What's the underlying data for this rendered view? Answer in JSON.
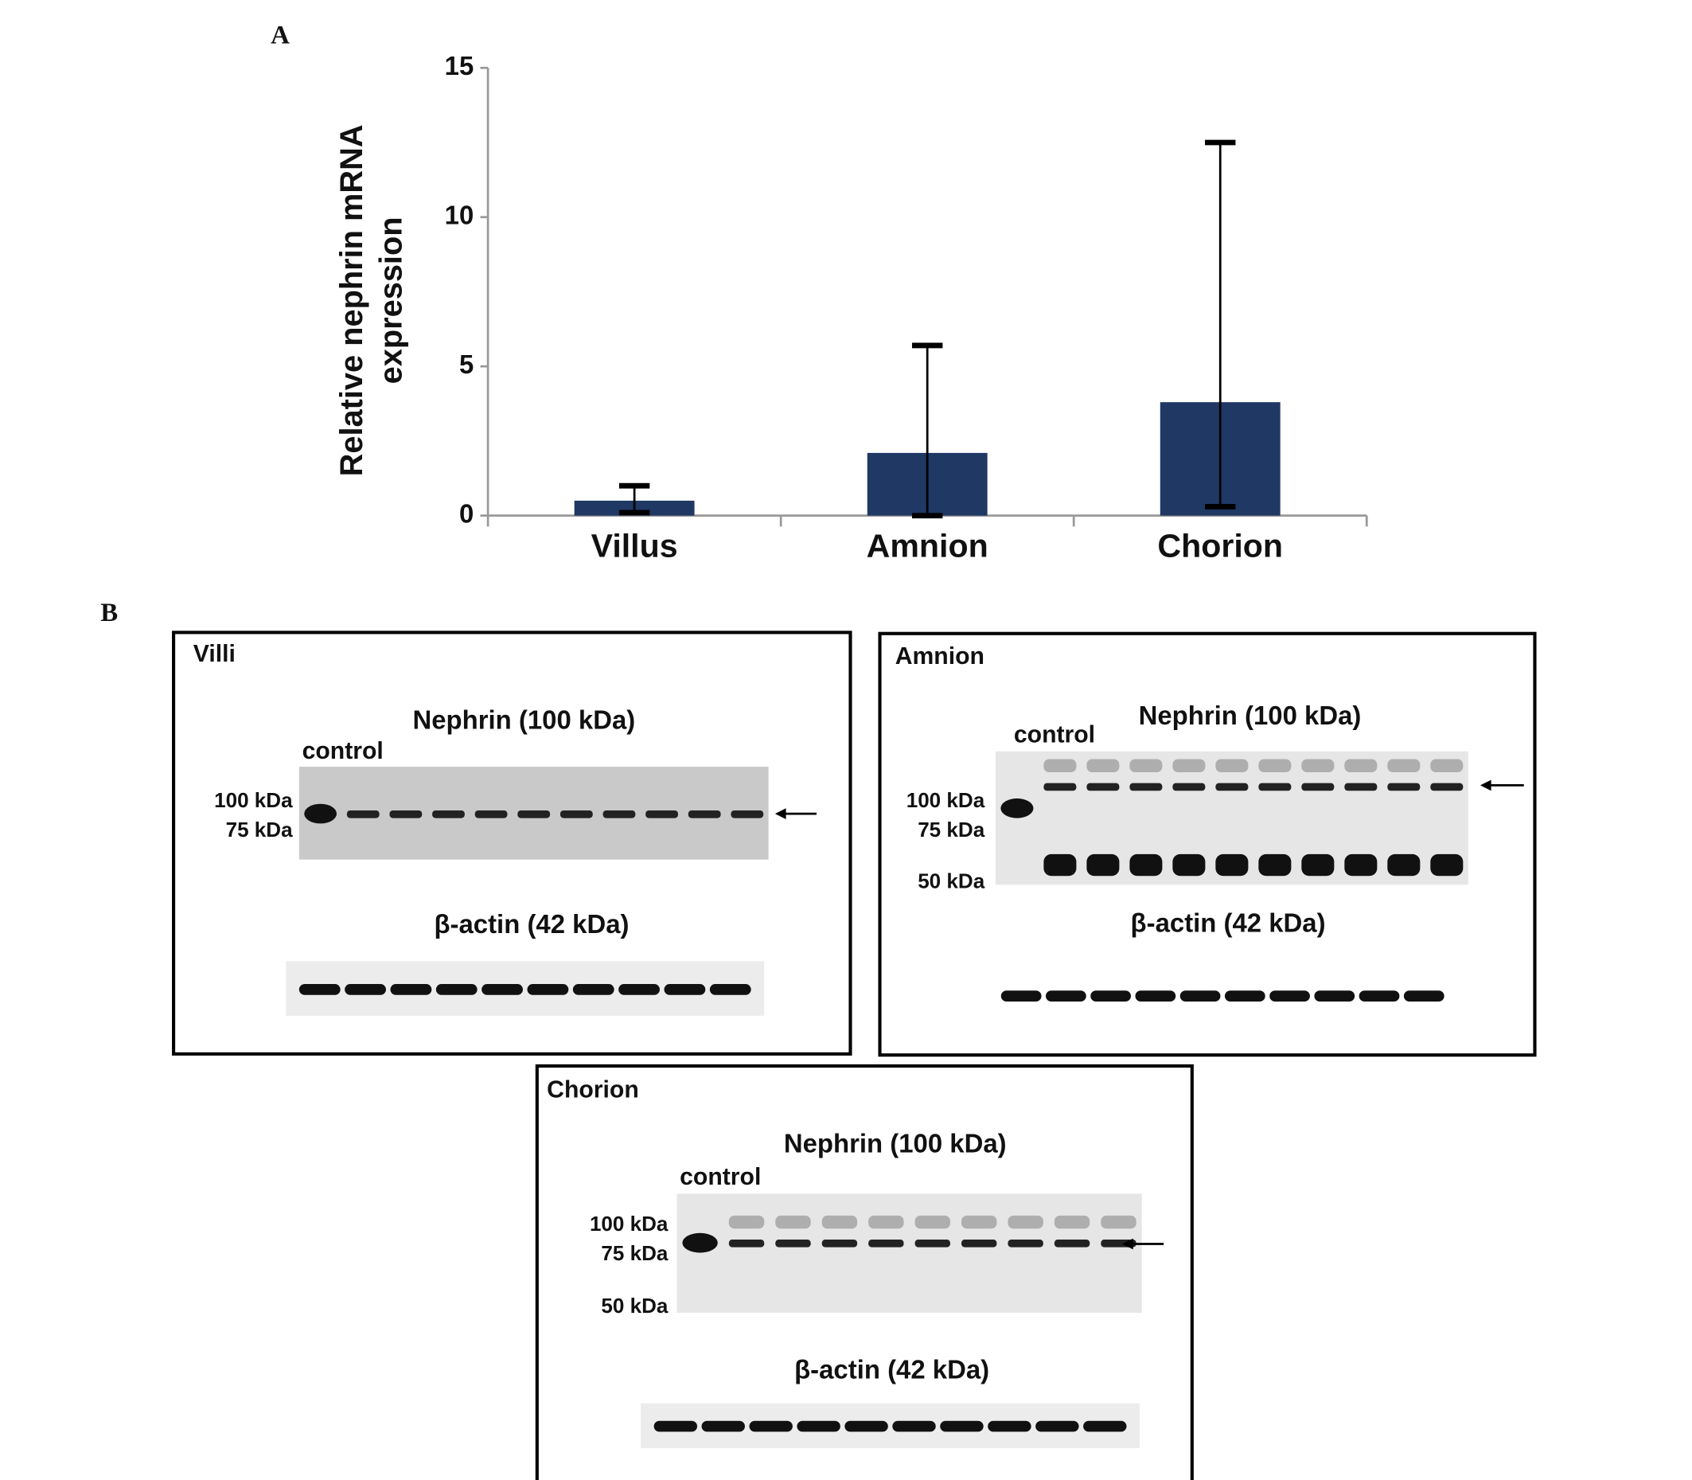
{
  "chart_data": {
    "type": "bar",
    "panel": "A",
    "y_label": [
      "Relative nephrin mRNA",
      "expression"
    ],
    "categories": [
      "Villus",
      "Amnion",
      "Chorion"
    ],
    "values": [
      0.5,
      2.1,
      3.8
    ],
    "error_upper": [
      0.5,
      3.6,
      8.7
    ],
    "error_lower": [
      0.4,
      2.1,
      3.5
    ],
    "color": "#1f3864",
    "ylim": [
      0,
      15
    ],
    "yticks": [
      0,
      5,
      10,
      15
    ],
    "grid": false
  },
  "blots": {
    "panel": "B",
    "items": [
      {
        "title": "Villi",
        "nephrin_label": "Nephrin (100 kDa)",
        "control": "control",
        "markers": [
          "100 kDa",
          "75 kDa"
        ],
        "actin_label": "β-actin (42 kDa)"
      },
      {
        "title": "Amnion",
        "nephrin_label": "Nephrin (100 kDa)",
        "control": "control",
        "markers": [
          "100 kDa",
          "75 kDa",
          "50 kDa"
        ],
        "actin_label": "β-actin (42 kDa)"
      },
      {
        "title": "Chorion",
        "nephrin_label": "Nephrin (100 kDa)",
        "control": "control",
        "markers": [
          "100 kDa",
          "75 kDa",
          "50 kDa"
        ],
        "actin_label": "β-actin (42 kDa)"
      }
    ]
  }
}
